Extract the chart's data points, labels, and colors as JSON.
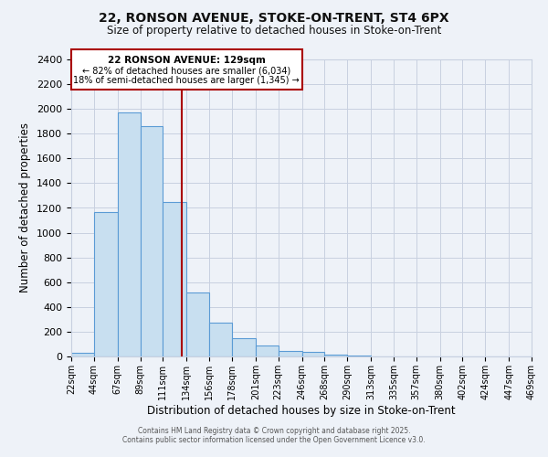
{
  "title": "22, RONSON AVENUE, STOKE-ON-TRENT, ST4 6PX",
  "subtitle": "Size of property relative to detached houses in Stoke-on-Trent",
  "xlabel": "Distribution of detached houses by size in Stoke-on-Trent",
  "ylabel": "Number of detached properties",
  "bins": [
    22,
    44,
    67,
    89,
    111,
    134,
    156,
    178,
    201,
    223,
    246,
    268,
    290,
    313,
    335,
    357,
    380,
    402,
    424,
    447,
    469
  ],
  "bin_labels": [
    "22sqm",
    "44sqm",
    "67sqm",
    "89sqm",
    "111sqm",
    "134sqm",
    "156sqm",
    "178sqm",
    "201sqm",
    "223sqm",
    "246sqm",
    "268sqm",
    "290sqm",
    "313sqm",
    "335sqm",
    "357sqm",
    "380sqm",
    "402sqm",
    "424sqm",
    "447sqm",
    "469sqm"
  ],
  "values": [
    30,
    1170,
    1970,
    1860,
    1250,
    520,
    275,
    150,
    85,
    45,
    38,
    15,
    5,
    2,
    1,
    1,
    1,
    0,
    0,
    0
  ],
  "bar_color": "#c8dff0",
  "bar_edge_color": "#5b9bd5",
  "vline_x": 129,
  "vline_color": "#aa0000",
  "ylim": [
    0,
    2400
  ],
  "yticks": [
    0,
    200,
    400,
    600,
    800,
    1000,
    1200,
    1400,
    1600,
    1800,
    2000,
    2200,
    2400
  ],
  "annotation_title": "22 RONSON AVENUE: 129sqm",
  "annotation_line1": "← 82% of detached houses are smaller (6,034)",
  "annotation_line2": "18% of semi-detached houses are larger (1,345) →",
  "bg_color": "#eef2f8",
  "grid_color": "#c8d0e0",
  "footer1": "Contains HM Land Registry data © Crown copyright and database right 2025.",
  "footer2": "Contains public sector information licensed under the Open Government Licence v3.0."
}
